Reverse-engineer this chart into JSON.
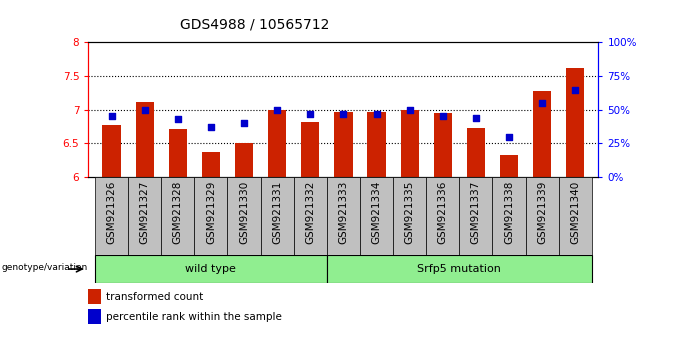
{
  "title": "GDS4988 / 10565712",
  "samples": [
    "GSM921326",
    "GSM921327",
    "GSM921328",
    "GSM921329",
    "GSM921330",
    "GSM921331",
    "GSM921332",
    "GSM921333",
    "GSM921334",
    "GSM921335",
    "GSM921336",
    "GSM921337",
    "GSM921338",
    "GSM921339",
    "GSM921340"
  ],
  "transformed_count": [
    6.78,
    7.12,
    6.72,
    6.37,
    6.5,
    7.0,
    6.82,
    6.97,
    6.96,
    7.0,
    6.95,
    6.73,
    6.32,
    7.28,
    7.62
  ],
  "percentile_rank": [
    45,
    50,
    43,
    37,
    40,
    50,
    47,
    47,
    47,
    50,
    45,
    44,
    30,
    55,
    65
  ],
  "ylim_left": [
    6.0,
    8.0
  ],
  "ylim_right": [
    0,
    100
  ],
  "yticks_left": [
    6.0,
    6.5,
    7.0,
    7.5,
    8.0
  ],
  "ytick_labels_left": [
    "6",
    "6.5",
    "7",
    "7.5",
    "8"
  ],
  "yticks_right": [
    0,
    25,
    50,
    75,
    100
  ],
  "ytick_labels_right": [
    "0%",
    "25%",
    "50%",
    "75%",
    "100%"
  ],
  "hlines": [
    6.5,
    7.0,
    7.5
  ],
  "bar_color": "#cc2200",
  "dot_color": "#0000cc",
  "bar_bottom": 6.0,
  "n_wild": 7,
  "n_srfp5": 8,
  "wild_type_label": "wild type",
  "srfp5_label": "Srfp5 mutation",
  "genotype_label": "genotype/variation",
  "legend_bar_label": "transformed count",
  "legend_dot_label": "percentile rank within the sample",
  "group_bg_color": "#90ee90",
  "xticklabel_bg": "#c0c0c0",
  "bar_width": 0.55,
  "title_fontsize": 10,
  "tick_fontsize": 7.5,
  "group_fontsize": 8,
  "legend_fontsize": 7.5
}
